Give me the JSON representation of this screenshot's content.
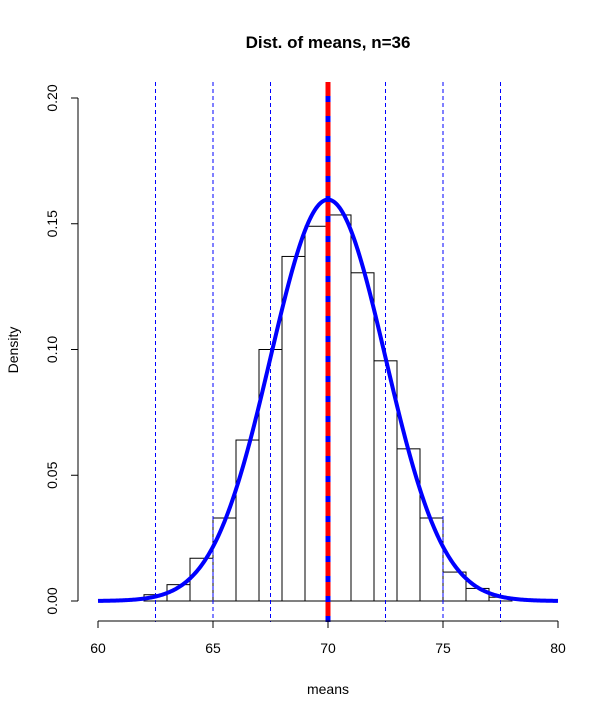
{
  "chart_data": {
    "type": "bar",
    "title": "Dist. of means, n=36",
    "xlabel": "means",
    "ylabel": "Density",
    "xlim": [
      60,
      80
    ],
    "ylim": [
      0,
      0.2
    ],
    "x_ticks": [
      60,
      65,
      70,
      75,
      80
    ],
    "y_ticks": [
      0.0,
      0.05,
      0.1,
      0.15,
      0.2
    ],
    "y_tick_labels": [
      "0.00",
      "0.05",
      "0.10",
      "0.15",
      "0.20"
    ],
    "grid": false,
    "histogram": {
      "bin_width": 1,
      "bins": [
        {
          "start": 62,
          "density": 0.0025
        },
        {
          "start": 63,
          "density": 0.0065
        },
        {
          "start": 64,
          "density": 0.017
        },
        {
          "start": 65,
          "density": 0.033
        },
        {
          "start": 66,
          "density": 0.064
        },
        {
          "start": 67,
          "density": 0.1
        },
        {
          "start": 68,
          "density": 0.137
        },
        {
          "start": 69,
          "density": 0.149
        },
        {
          "start": 70,
          "density": 0.1535
        },
        {
          "start": 71,
          "density": 0.1305
        },
        {
          "start": 72,
          "density": 0.0955
        },
        {
          "start": 73,
          "density": 0.0605
        },
        {
          "start": 74,
          "density": 0.033
        },
        {
          "start": 75,
          "density": 0.0115
        },
        {
          "start": 76,
          "density": 0.005
        },
        {
          "start": 77,
          "density": 0.0015
        }
      ]
    },
    "normal_curve": {
      "mean": 70,
      "sd": 2.5,
      "color": "#0000ff"
    },
    "mean_line": {
      "x": 70,
      "color": "#ff0000",
      "dash_color": "#0000ff"
    },
    "sd_lines": {
      "x": [
        62.5,
        65,
        67.5,
        72.5,
        75,
        77.5
      ],
      "color": "#0000ff"
    }
  }
}
